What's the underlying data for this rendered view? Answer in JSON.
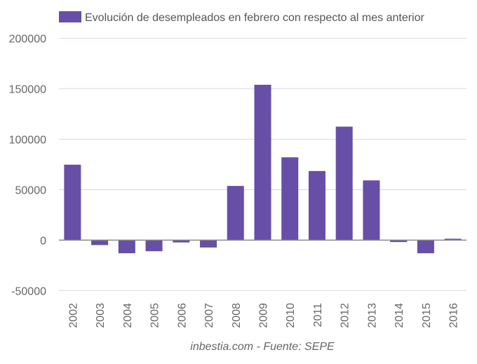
{
  "chart_data": {
    "type": "bar",
    "title": "",
    "xlabel": "",
    "ylabel": "",
    "caption": "inbestia.com - Fuente: SEPE",
    "legend": {
      "position": "top",
      "entries": [
        "Evolución de desempleados en febrero con respecto al mes anterior"
      ]
    },
    "categories": [
      "2002",
      "2003",
      "2004",
      "2005",
      "2006",
      "2007",
      "2008",
      "2009",
      "2010",
      "2011",
      "2012",
      "2013",
      "2014",
      "2015",
      "2016"
    ],
    "series": [
      {
        "name": "Evolución de desempleados en febrero con respecto al mes anterior",
        "color": "#674ea7",
        "values": [
          74800,
          -4900,
          -13000,
          -11000,
          -2300,
          -7300,
          53700,
          154000,
          82100,
          68500,
          112500,
          59200,
          -1900,
          -13000,
          1400
        ]
      }
    ],
    "ylim": [
      -50000,
      200000
    ],
    "yticks": [
      -50000,
      0,
      50000,
      100000,
      150000,
      200000
    ],
    "ytick_labels": [
      "-50000",
      "0",
      "50000",
      "100000",
      "150000",
      "200000"
    ],
    "grid": true,
    "colors": {
      "bar": "#674ea7",
      "grid": "#d9d4ee",
      "axis": "#888888"
    }
  }
}
